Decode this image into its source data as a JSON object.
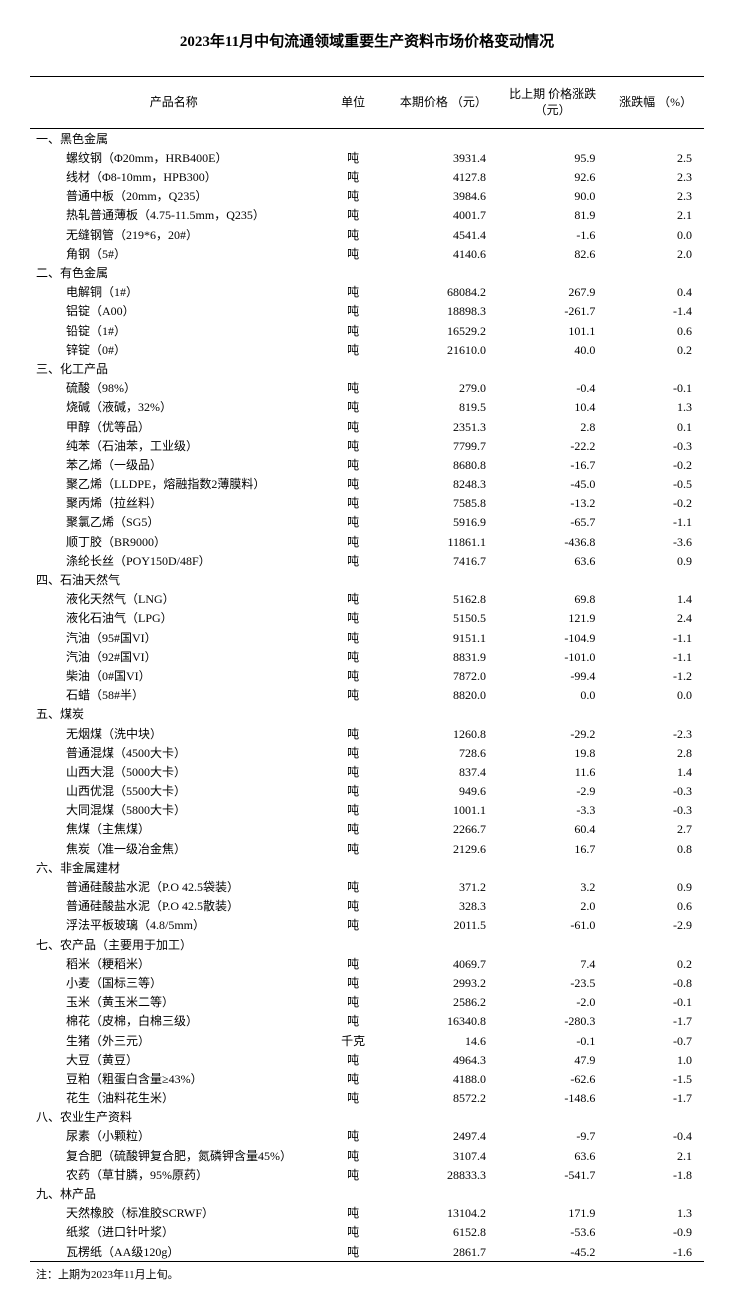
{
  "title": "2023年11月中旬流通领域重要生产资料市场价格变动情况",
  "columns": {
    "name": "产品名称",
    "unit": "单位",
    "price": "本期价格\n（元）",
    "diff": "比上期\n价格涨跌\n（元）",
    "pct": "涨跌幅\n（%）"
  },
  "footnote": "注：上期为2023年11月上旬。",
  "sections": [
    {
      "heading": "一、黑色金属",
      "rows": [
        {
          "name": "螺纹钢（Φ20mm，HRB400E）",
          "unit": "吨",
          "price": "3931.4",
          "diff": "95.9",
          "pct": "2.5"
        },
        {
          "name": "线材（Φ8-10mm，HPB300）",
          "unit": "吨",
          "price": "4127.8",
          "diff": "92.6",
          "pct": "2.3"
        },
        {
          "name": "普通中板（20mm，Q235）",
          "unit": "吨",
          "price": "3984.6",
          "diff": "90.0",
          "pct": "2.3"
        },
        {
          "name": "热轧普通薄板（4.75-11.5mm，Q235）",
          "unit": "吨",
          "price": "4001.7",
          "diff": "81.9",
          "pct": "2.1"
        },
        {
          "name": "无缝钢管（219*6，20#）",
          "unit": "吨",
          "price": "4541.4",
          "diff": "-1.6",
          "pct": "0.0"
        },
        {
          "name": "角钢（5#）",
          "unit": "吨",
          "price": "4140.6",
          "diff": "82.6",
          "pct": "2.0"
        }
      ]
    },
    {
      "heading": "二、有色金属",
      "rows": [
        {
          "name": "电解铜（1#）",
          "unit": "吨",
          "price": "68084.2",
          "diff": "267.9",
          "pct": "0.4"
        },
        {
          "name": "铝锭（A00）",
          "unit": "吨",
          "price": "18898.3",
          "diff": "-261.7",
          "pct": "-1.4"
        },
        {
          "name": "铅锭（1#）",
          "unit": "吨",
          "price": "16529.2",
          "diff": "101.1",
          "pct": "0.6"
        },
        {
          "name": "锌锭（0#）",
          "unit": "吨",
          "price": "21610.0",
          "diff": "40.0",
          "pct": "0.2"
        }
      ]
    },
    {
      "heading": "三、化工产品",
      "rows": [
        {
          "name": "硫酸（98%）",
          "unit": "吨",
          "price": "279.0",
          "diff": "-0.4",
          "pct": "-0.1"
        },
        {
          "name": "烧碱（液碱，32%）",
          "unit": "吨",
          "price": "819.5",
          "diff": "10.4",
          "pct": "1.3"
        },
        {
          "name": "甲醇（优等品）",
          "unit": "吨",
          "price": "2351.3",
          "diff": "2.8",
          "pct": "0.1"
        },
        {
          "name": "纯苯（石油苯，工业级）",
          "unit": "吨",
          "price": "7799.7",
          "diff": "-22.2",
          "pct": "-0.3"
        },
        {
          "name": "苯乙烯（一级品）",
          "unit": "吨",
          "price": "8680.8",
          "diff": "-16.7",
          "pct": "-0.2"
        },
        {
          "name": "聚乙烯（LLDPE，熔融指数2薄膜料）",
          "unit": "吨",
          "price": "8248.3",
          "diff": "-45.0",
          "pct": "-0.5"
        },
        {
          "name": "聚丙烯（拉丝料）",
          "unit": "吨",
          "price": "7585.8",
          "diff": "-13.2",
          "pct": "-0.2"
        },
        {
          "name": "聚氯乙烯（SG5）",
          "unit": "吨",
          "price": "5916.9",
          "diff": "-65.7",
          "pct": "-1.1"
        },
        {
          "name": "顺丁胶（BR9000）",
          "unit": "吨",
          "price": "11861.1",
          "diff": "-436.8",
          "pct": "-3.6"
        },
        {
          "name": "涤纶长丝（POY150D/48F）",
          "unit": "吨",
          "price": "7416.7",
          "diff": "63.6",
          "pct": "0.9"
        }
      ]
    },
    {
      "heading": "四、石油天然气",
      "rows": [
        {
          "name": "液化天然气（LNG）",
          "unit": "吨",
          "price": "5162.8",
          "diff": "69.8",
          "pct": "1.4"
        },
        {
          "name": "液化石油气（LPG）",
          "unit": "吨",
          "price": "5150.5",
          "diff": "121.9",
          "pct": "2.4"
        },
        {
          "name": "汽油（95#国VI）",
          "unit": "吨",
          "price": "9151.1",
          "diff": "-104.9",
          "pct": "-1.1"
        },
        {
          "name": "汽油（92#国VI）",
          "unit": "吨",
          "price": "8831.9",
          "diff": "-101.0",
          "pct": "-1.1"
        },
        {
          "name": "柴油（0#国VI）",
          "unit": "吨",
          "price": "7872.0",
          "diff": "-99.4",
          "pct": "-1.2"
        },
        {
          "name": "石蜡（58#半）",
          "unit": "吨",
          "price": "8820.0",
          "diff": "0.0",
          "pct": "0.0"
        }
      ]
    },
    {
      "heading": "五、煤炭",
      "rows": [
        {
          "name": "无烟煤（洗中块）",
          "unit": "吨",
          "price": "1260.8",
          "diff": "-29.2",
          "pct": "-2.3"
        },
        {
          "name": "普通混煤（4500大卡）",
          "unit": "吨",
          "price": "728.6",
          "diff": "19.8",
          "pct": "2.8"
        },
        {
          "name": "山西大混（5000大卡）",
          "unit": "吨",
          "price": "837.4",
          "diff": "11.6",
          "pct": "1.4"
        },
        {
          "name": "山西优混（5500大卡）",
          "unit": "吨",
          "price": "949.6",
          "diff": "-2.9",
          "pct": "-0.3"
        },
        {
          "name": "大同混煤（5800大卡）",
          "unit": "吨",
          "price": "1001.1",
          "diff": "-3.3",
          "pct": "-0.3"
        },
        {
          "name": "焦煤（主焦煤）",
          "unit": "吨",
          "price": "2266.7",
          "diff": "60.4",
          "pct": "2.7"
        },
        {
          "name": "焦炭（准一级冶金焦）",
          "unit": "吨",
          "price": "2129.6",
          "diff": "16.7",
          "pct": "0.8"
        }
      ]
    },
    {
      "heading": "六、非金属建材",
      "rows": [
        {
          "name": "普通硅酸盐水泥（P.O 42.5袋装）",
          "unit": "吨",
          "price": "371.2",
          "diff": "3.2",
          "pct": "0.9"
        },
        {
          "name": "普通硅酸盐水泥（P.O 42.5散装）",
          "unit": "吨",
          "price": "328.3",
          "diff": "2.0",
          "pct": "0.6"
        },
        {
          "name": "浮法平板玻璃（4.8/5mm）",
          "unit": "吨",
          "price": "2011.5",
          "diff": "-61.0",
          "pct": "-2.9"
        }
      ]
    },
    {
      "heading": "七、农产品（主要用于加工）",
      "rows": [
        {
          "name": "稻米（粳稻米）",
          "unit": "吨",
          "price": "4069.7",
          "diff": "7.4",
          "pct": "0.2"
        },
        {
          "name": "小麦（国标三等）",
          "unit": "吨",
          "price": "2993.2",
          "diff": "-23.5",
          "pct": "-0.8"
        },
        {
          "name": "玉米（黄玉米二等）",
          "unit": "吨",
          "price": "2586.2",
          "diff": "-2.0",
          "pct": "-0.1"
        },
        {
          "name": "棉花（皮棉，白棉三级）",
          "unit": "吨",
          "price": "16340.8",
          "diff": "-280.3",
          "pct": "-1.7"
        },
        {
          "name": "生猪（外三元）",
          "unit": "千克",
          "price": "14.6",
          "diff": "-0.1",
          "pct": "-0.7"
        },
        {
          "name": "大豆（黄豆）",
          "unit": "吨",
          "price": "4964.3",
          "diff": "47.9",
          "pct": "1.0"
        },
        {
          "name": "豆粕（粗蛋白含量≥43%）",
          "unit": "吨",
          "price": "4188.0",
          "diff": "-62.6",
          "pct": "-1.5"
        },
        {
          "name": "花生（油料花生米）",
          "unit": "吨",
          "price": "8572.2",
          "diff": "-148.6",
          "pct": "-1.7"
        }
      ]
    },
    {
      "heading": "八、农业生产资料",
      "rows": [
        {
          "name": "尿素（小颗粒）",
          "unit": "吨",
          "price": "2497.4",
          "diff": "-9.7",
          "pct": "-0.4"
        },
        {
          "name": "复合肥（硫酸钾复合肥，氮磷钾含量45%）",
          "unit": "吨",
          "price": "3107.4",
          "diff": "63.6",
          "pct": "2.1"
        },
        {
          "name": "农药（草甘膦，95%原药）",
          "unit": "吨",
          "price": "28833.3",
          "diff": "-541.7",
          "pct": "-1.8"
        }
      ]
    },
    {
      "heading": "九、林产品",
      "rows": [
        {
          "name": "天然橡胶（标准胶SCRWF）",
          "unit": "吨",
          "price": "13104.2",
          "diff": "171.9",
          "pct": "1.3"
        },
        {
          "name": "纸浆（进口针叶浆）",
          "unit": "吨",
          "price": "6152.8",
          "diff": "-53.6",
          "pct": "-0.9"
        },
        {
          "name": "瓦楞纸（AA级120g）",
          "unit": "吨",
          "price": "2861.7",
          "diff": "-45.2",
          "pct": "-1.6"
        }
      ]
    }
  ]
}
